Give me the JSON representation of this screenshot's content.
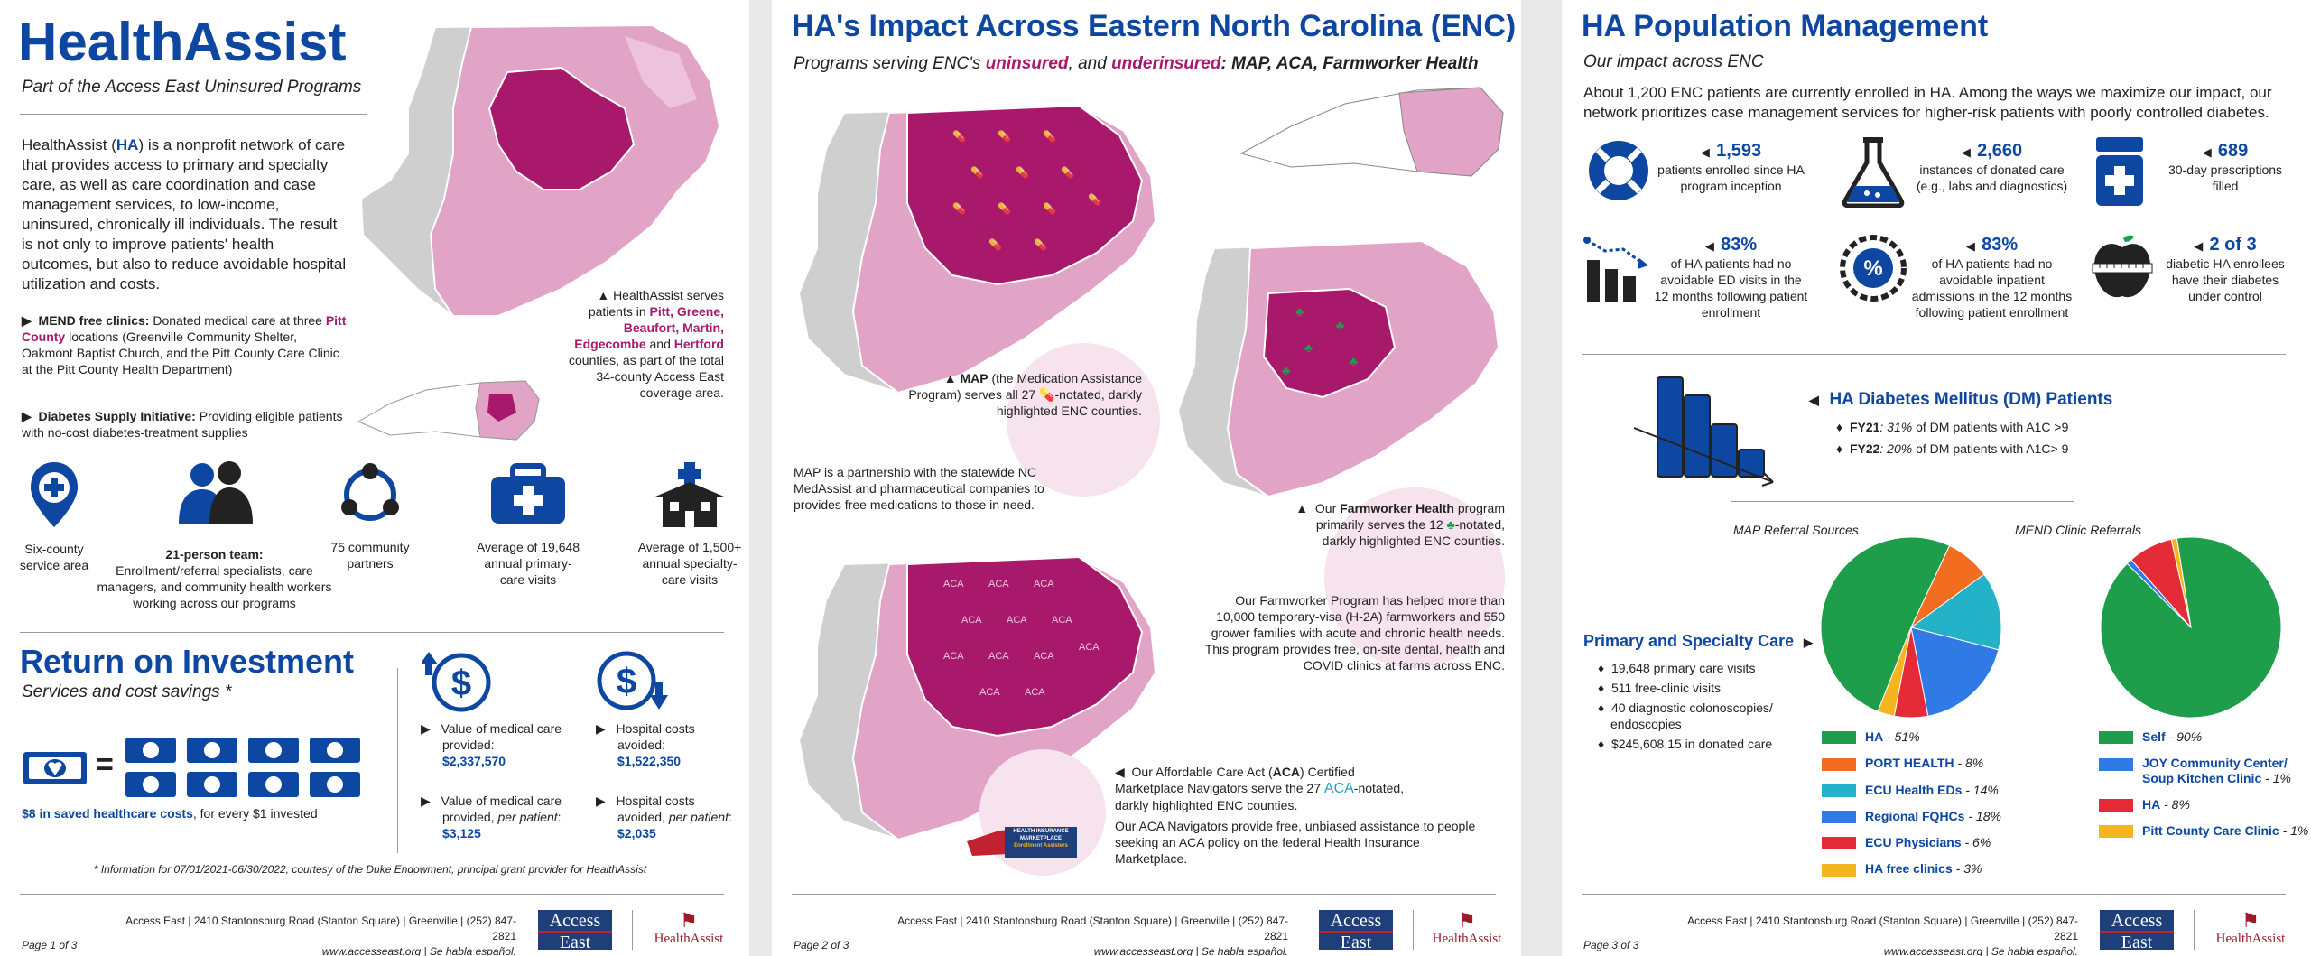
{
  "colors": {
    "blue": "#0d47a1",
    "magenta": "#a8196b",
    "pink": "#e2a4c6",
    "gray": "#cfcfcf",
    "navy": "#1f3f7a"
  },
  "footer": {
    "address": "Access East | 2410 Stantonsburg Road (Stanton Square) | Greenville | (252) 847-2821",
    "web": "www.accesseast.org | Se habla español.",
    "logo_ae_top": "Access",
    "logo_ae_bottom": "East",
    "logo_ha": "HealthAssist"
  },
  "page1": {
    "title": "HealthAssist",
    "subtitle": "Part of the Access East Uninsured Programs",
    "intro_a": "HealthAssist (",
    "intro_ha": "HA",
    "intro_b": ") is a nonprofit network of care that provides access to primary and specialty care, as well as care coordination and case management services, to low-income, uninsured, chronically ill individuals. The result is not only to improve patients' health outcomes, but also to reduce avoidable hospital utilization and costs.",
    "mend_label": "MEND free clinics:",
    "mend_text_a": " Donated medical care at three ",
    "mend_pitt": "Pitt County",
    "mend_text_b": " locations (Greenville Community Shelter, Oakmont Baptist Church, and the  Pitt County Care Clinic at the Pitt County Health Department)",
    "dsi_label": "Diabetes Supply Initiative:",
    "dsi_text": " Providing eligible patients with no-cost diabetes-treatment supplies",
    "map_note_a": "HealthAssist serves patients in ",
    "map_note_counties": "Pitt, Greene, Beaufort, Martin, Edgecombe",
    "map_note_and": " and ",
    "map_note_hertford": "Hertford",
    "map_note_b": " counties, as part of the total 34-county Access East coverage area.",
    "icons": [
      {
        "label": "Six-county service area"
      },
      {
        "label_bold": "21-person team:",
        "label": "Enrollment/referral specialists, care managers, and community health workers working across our programs"
      },
      {
        "label": "75 community partners"
      },
      {
        "label": "Average of 19,648 annual primary-care visits"
      },
      {
        "label": "Average of 1,500+ annual specialty-care visits"
      }
    ],
    "roi_title": "Return on Investment",
    "roi_sub": "Services and cost savings *",
    "roi_caption_bold": "$8 in saved healthcare costs",
    "roi_caption": ", for every $1 invested",
    "equals": "=",
    "roi_items": [
      {
        "label": "Value of medical care provided:",
        "value": "$2,337,570"
      },
      {
        "label": "Hospital costs avoided:",
        "value": "$1,522,350"
      },
      {
        "label": "Value of medical care provided, ",
        "label_ital": "per patient",
        "label_end": ":",
        "value": "$3,125"
      },
      {
        "label": "Hospital costs avoided, ",
        "label_ital": "per patient",
        "label_end": ":",
        "value": "$2,035"
      }
    ],
    "footnote": "* Information for 07/01/2021-06/30/2022, courtesy of the Duke Endowment, principal grant provider for HealthAssist",
    "page_no": "Page 1 of 3"
  },
  "page2": {
    "title": "HA's Impact Across Eastern North Carolina (ENC)",
    "subtitle_a": "Programs serving ENC's ",
    "subtitle_uninsured": "uninsured",
    "subtitle_and": ", and ",
    "subtitle_under": "underinsured",
    "subtitle_b": ": MAP, ACA, Farmworker Health",
    "map_note_a": "MAP",
    "map_note_b": " (the Medication Assistance Program) serves all 27 ",
    "map_note_c": "-notated, darkly highlighted ENC counties.",
    "map_para": "MAP is a partnership with the statewide NC MedAssist and pharmaceutical companies to provides free medications to those in need.",
    "farm_a": "Our ",
    "farm_b": "Farmworker Health",
    "farm_c": " program primarily serves the 12 ",
    "farm_d": "-notated, darkly highlighted ENC counties.",
    "farm_para": "Our Farmworker Program has helped more than 10,000 temporary-visa (H-2A) farmworkers and 550 grower families with acute and chronic health needs. This program provides free, on-site dental, health and COVID clinics at farms across ENC.",
    "aca_a": "Our Affordable Care Act (",
    "aca_b": "ACA",
    "aca_c": ") Certified Marketplace Navigators serve the 27 ",
    "aca_tag": "ACA",
    "aca_d": "-notated, darkly highlighted ENC counties.",
    "aca_para": "Our ACA Navigators provide free, unbiased assistance to people seeking an ACA policy on the federal Health Insurance Marketplace.",
    "badge_top": "HEALTH INSURANCE",
    "badge_mid": "MARKETPLACE",
    "badge_bottom": "Enrollment Assisters",
    "page_no": "Page 2 of 3"
  },
  "page3": {
    "title": "HA Population Management",
    "subtitle": "Our impact across ENC",
    "intro": "About 1,200 ENC patients are currently enrolled in HA. Among the ways we maximize our impact, our network prioritizes case management services for higher-risk patients with poorly controlled diabetes.",
    "stats": [
      {
        "value": "1,593",
        "label": "patients enrolled since HA program inception",
        "icon": "lifebuoy-icon"
      },
      {
        "value": "2,660",
        "label": "instances of donated care (e.g., labs and diagnostics)",
        "icon": "flask-icon"
      },
      {
        "value": "689",
        "label": "30-day prescriptions filled",
        "icon": "pill-bottle-icon"
      },
      {
        "value": "83%",
        "label": "of HA patients had no avoidable ED visits in the 12 months following patient enrollment",
        "icon": "decline-chart-icon"
      },
      {
        "value": "83%",
        "label": "of HA patients had no avoidable inpatient admissions in the 12 months following patient enrollment",
        "icon": "percent-badge-icon"
      },
      {
        "value": "2 of 3",
        "label": "diabetic HA enrollees have their diabetes under control",
        "icon": "apple-tape-icon"
      }
    ],
    "dm_title": "HA Diabetes Mellitus (DM) Patients",
    "dm_items": [
      {
        "year": "FY21",
        "text_ital": ": 31%",
        "text": " of DM patients with A1C >9"
      },
      {
        "year": "FY22",
        "text_ital": ": 20%",
        "text": " of DM patients with A1C> 9"
      }
    ],
    "psc_title": "Primary and Specialty Care",
    "psc_items": [
      "19,648 primary care visits",
      "511 free-clinic visits",
      "40 diagnostic colonoscopies/ endoscopies",
      "$245,608.15 in donated care"
    ],
    "page_no": "Page 3 of 3"
  },
  "chart_data": [
    {
      "type": "pie",
      "title": "MAP Referral Sources",
      "series": [
        {
          "values": [
            51,
            8,
            14,
            18,
            6,
            3
          ]
        }
      ],
      "categories": [
        "HA",
        "PORT HEALTH",
        "ECU Health EDs",
        "Regional FQHCs",
        "ECU Physicians",
        "HA free clinics"
      ],
      "percent_labels": [
        "51%",
        "8%",
        "14%",
        "18%",
        "6%",
        "3%"
      ],
      "colors": [
        "#1e9e4a",
        "#f36d21",
        "#23b2c8",
        "#2f7ae5",
        "#e52b38",
        "#f5b520"
      ]
    },
    {
      "type": "pie",
      "title": "MEND Clinic Referrals",
      "series": [
        {
          "values": [
            90,
            1,
            8,
            1
          ]
        }
      ],
      "categories": [
        "Self",
        "JOY Community Center/ Soup Kitchen Clinic",
        "HA",
        "Pitt County Care Clinic"
      ],
      "percent_labels": [
        "90%",
        "1%",
        "8%",
        "1%"
      ],
      "colors": [
        "#1e9e4a",
        "#2f7ae5",
        "#e52b38",
        "#f5b520"
      ]
    }
  ]
}
